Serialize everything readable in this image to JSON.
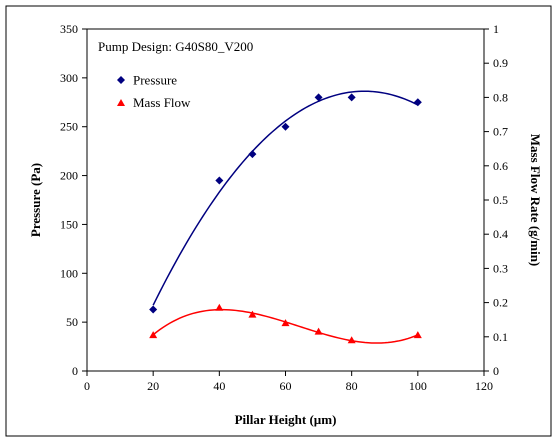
{
  "chart_data": {
    "type": "scatter",
    "annotation": "Pump Design: G40S80_V200",
    "xlabel": "Pillar Height (µm)",
    "ylabel_left": "Pressure (Pa)",
    "ylabel_right": "Mass Flow Rate (g/min)",
    "xlim": [
      0,
      120
    ],
    "xticks": [
      "0",
      "20",
      "40",
      "60",
      "80",
      "100",
      "120"
    ],
    "ylim_left": [
      0,
      350
    ],
    "yticks_left": [
      "0",
      "50",
      "100",
      "150",
      "200",
      "250",
      "300",
      "350"
    ],
    "ylim_right": [
      0,
      1
    ],
    "yticks_right": [
      "0",
      "0.1",
      "0.2",
      "0.3",
      "0.4",
      "0.5",
      "0.6",
      "0.7",
      "0.8",
      "0.9",
      "1"
    ],
    "legend_position": "top-left",
    "grid": false,
    "series": [
      {
        "name": "Pressure",
        "axis": "left",
        "marker": "diamond",
        "color": "#000080",
        "x": [
          20,
          40,
          50,
          60,
          70,
          80,
          100
        ],
        "y": [
          63,
          195,
          222,
          250,
          280,
          280,
          275
        ],
        "trendline": "polynomial"
      },
      {
        "name": "Mass Flow",
        "axis": "right",
        "marker": "triangle",
        "color": "#ff0000",
        "x": [
          20,
          40,
          50,
          60,
          70,
          80,
          100
        ],
        "y": [
          0.105,
          0.185,
          0.165,
          0.14,
          0.115,
          0.09,
          0.105
        ],
        "trendline": "polynomial"
      }
    ]
  }
}
